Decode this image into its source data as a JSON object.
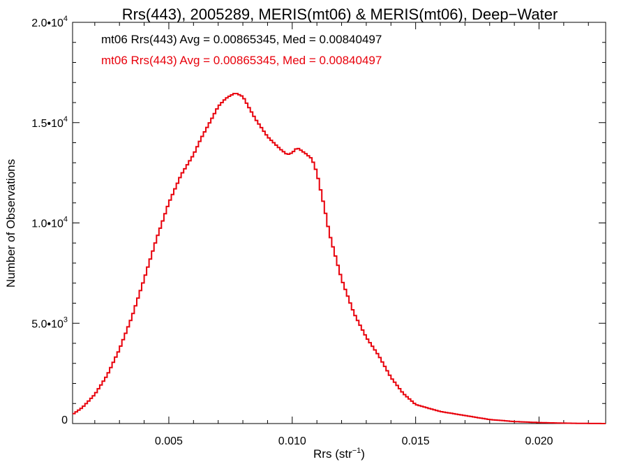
{
  "chart_data": {
    "type": "histogram",
    "title": "Rrs(443), 2005289, MERIS(mt06) & MERIS(mt06), Deep−Water",
    "xlabel": "Rrs (str",
    "xlabel_sup": "−1",
    "xlabel_close": ")",
    "ylabel": "Number of Observations",
    "xlim": [
      0.0011,
      0.0227
    ],
    "ylim": [
      0,
      20000
    ],
    "x_ticks": [
      {
        "value": 0.005,
        "label": "0.005"
      },
      {
        "value": 0.01,
        "label": "0.010"
      },
      {
        "value": 0.015,
        "label": "0.015"
      },
      {
        "value": 0.02,
        "label": "0.020"
      }
    ],
    "y_ticks": [
      {
        "value": 0,
        "mant": "0",
        "exp": ""
      },
      {
        "value": 5000,
        "mant": "5.0•10",
        "exp": "3"
      },
      {
        "value": 10000,
        "mant": "1.0•10",
        "exp": "4"
      },
      {
        "value": 15000,
        "mant": "1.5•10",
        "exp": "4"
      },
      {
        "value": 20000,
        "mant": "2.0•10",
        "exp": "4"
      }
    ],
    "annotations": [
      {
        "text": "mt06 Rrs(443) Avg = 0.00865345, Med = 0.00840497",
        "color": "#000000"
      },
      {
        "text": "mt06 Rrs(443) Avg = 0.00865345, Med = 0.00840497",
        "color": "#e8000b"
      }
    ],
    "series": [
      {
        "color": "#e8000b",
        "x": [
          0.0011,
          0.0015,
          0.002,
          0.0025,
          0.003,
          0.0035,
          0.004,
          0.0045,
          0.005,
          0.0055,
          0.006,
          0.0063,
          0.0067,
          0.007,
          0.0073,
          0.0075,
          0.0077,
          0.008,
          0.0085,
          0.009,
          0.0095,
          0.0098,
          0.01,
          0.0102,
          0.0105,
          0.0108,
          0.011,
          0.0113,
          0.0115,
          0.012,
          0.0125,
          0.013,
          0.0135,
          0.014,
          0.0145,
          0.015,
          0.0155,
          0.016,
          0.017,
          0.018,
          0.019,
          0.02,
          0.021,
          0.022,
          0.0227
        ],
        "y": [
          450,
          800,
          1450,
          2400,
          3700,
          5300,
          7200,
          9200,
          11000,
          12400,
          13400,
          14200,
          15100,
          15800,
          16200,
          16350,
          16480,
          16300,
          15200,
          14300,
          13700,
          13400,
          13500,
          13750,
          13500,
          13200,
          12500,
          10800,
          9500,
          7200,
          5500,
          4300,
          3400,
          2300,
          1500,
          950,
          770,
          600,
          400,
          200,
          100,
          50,
          20,
          5,
          0
        ]
      }
    ]
  }
}
